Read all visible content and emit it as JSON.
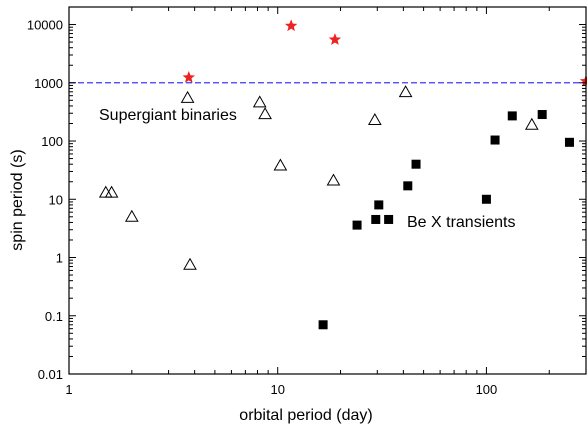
{
  "chart_data": {
    "type": "scatter",
    "x_scale": "log",
    "y_scale": "log",
    "xlim": [
      1,
      300
    ],
    "ylim": [
      0.01,
      20000
    ],
    "xlabel": "orbital period (day)",
    "ylabel": "spin period (s)",
    "x_ticks": [
      "1",
      "10",
      "100"
    ],
    "y_ticks": [
      "0.01",
      "0.1",
      "1",
      "10",
      "100",
      "1000",
      "10000"
    ],
    "reference_line": {
      "y": 1000,
      "style": "dashed",
      "color": "#3b3bff"
    },
    "annotations": [
      "Supergiant binaries",
      "Be X transients"
    ],
    "series": [
      {
        "marker": "open-triangle",
        "color": "#000000",
        "points": [
          [
            1.5,
            13
          ],
          [
            1.6,
            13
          ],
          [
            2.0,
            5
          ],
          [
            3.7,
            550
          ],
          [
            3.8,
            0.75
          ],
          [
            8.2,
            460
          ],
          [
            8.7,
            290
          ],
          [
            10.3,
            38
          ],
          [
            18.5,
            21
          ],
          [
            29.2,
            230
          ],
          [
            41,
            690
          ],
          [
            165,
            190
          ]
        ]
      },
      {
        "marker": "filled-square",
        "color": "#000000",
        "points": [
          [
            16.5,
            0.07
          ],
          [
            24,
            3.6
          ],
          [
            29.5,
            4.5
          ],
          [
            30.5,
            8
          ],
          [
            34,
            4.5
          ],
          [
            42,
            17
          ],
          [
            46,
            40
          ],
          [
            100,
            10
          ],
          [
            110,
            104
          ],
          [
            133,
            270
          ],
          [
            185,
            285
          ],
          [
            250,
            95
          ]
        ]
      },
      {
        "marker": "star",
        "color": "#ee2222",
        "points": [
          [
            3.75,
            1230
          ],
          [
            11.6,
            9500
          ],
          [
            18.8,
            5500
          ],
          [
            300,
            1060
          ]
        ]
      }
    ]
  }
}
